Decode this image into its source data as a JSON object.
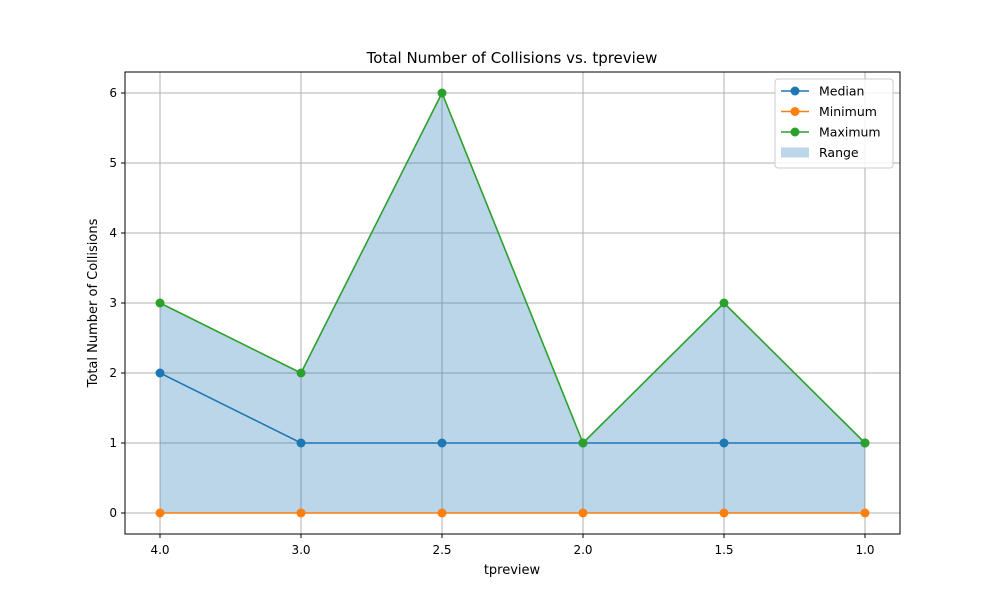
{
  "chart_data": {
    "type": "line",
    "title": "Total Number of Collisions vs. tpreview",
    "xlabel": "tpreview",
    "ylabel": "Total Number of Collisions",
    "categories": [
      "4.0",
      "3.0",
      "2.5",
      "2.0",
      "1.5",
      "1.0"
    ],
    "ylim": [
      -0.3,
      6.3
    ],
    "yticks": [
      "0",
      "1",
      "2",
      "3",
      "4",
      "5",
      "6"
    ],
    "grid": true,
    "legend_position": "top-right",
    "series": [
      {
        "name": "Median",
        "values": [
          2,
          1,
          1,
          1,
          1,
          1
        ],
        "color": "#1f77b4"
      },
      {
        "name": "Minimum",
        "values": [
          0,
          0,
          0,
          0,
          0,
          0
        ],
        "color": "#ff7f0e"
      },
      {
        "name": "Maximum",
        "values": [
          3,
          2,
          6,
          1,
          3,
          1
        ],
        "color": "#2ca02c"
      }
    ],
    "range_fill": {
      "name": "Range",
      "lower_series": "Minimum",
      "upper_series": "Maximum",
      "color": "#1f77b4",
      "opacity": 0.3
    }
  }
}
